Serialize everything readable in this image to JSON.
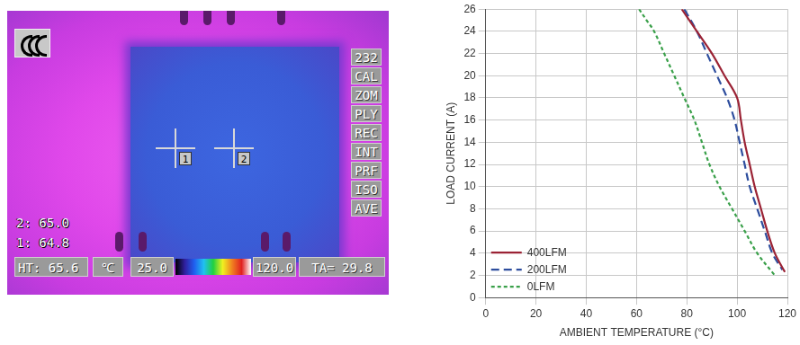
{
  "chart_data": {
    "type": "line",
    "x_label": "AMBIENT TEMPERATURE (°C)",
    "y_label": "LOAD CURRENT (A)",
    "xlim": [
      0,
      120
    ],
    "xticks": [
      0,
      20,
      40,
      60,
      80,
      100,
      120
    ],
    "ylim": [
      0,
      26
    ],
    "yticks": [
      0,
      2,
      4,
      6,
      8,
      10,
      12,
      14,
      16,
      18,
      20,
      22,
      24,
      26
    ],
    "grid": true,
    "legend": "lower left",
    "series": [
      {
        "name": "400LFM",
        "color": "#9b2335",
        "line_style": "solid",
        "x": [
          78,
          84,
          90,
          95,
          100,
          101.5,
          103,
          105,
          107,
          109.5,
          112,
          115,
          119
        ],
        "values": [
          26,
          24,
          22,
          20,
          18,
          16,
          14,
          12,
          10,
          8,
          6,
          4,
          2.3
        ]
      },
      {
        "name": "200LFM",
        "color": "#2e4e9e",
        "line_style": "dashed",
        "x": [
          79,
          84,
          88,
          92,
          96,
          99,
          101,
          103,
          105,
          108,
          111,
          114,
          118
        ],
        "values": [
          26,
          24,
          22,
          20,
          18,
          16,
          14,
          12,
          10,
          8,
          6,
          4,
          2.5
        ]
      },
      {
        "name": "0LFM",
        "color": "#3aa04a",
        "line_style": "dotted",
        "x": [
          61,
          64,
          67,
          71,
          75,
          79,
          83,
          86,
          89,
          93,
          98,
          103,
          108,
          115
        ],
        "values": [
          26,
          25,
          24,
          22,
          20,
          18,
          16,
          14,
          12,
          10,
          8,
          6,
          4,
          2
        ]
      }
    ]
  },
  "thermal_image": {
    "menu": [
      "232",
      "CAL",
      "ZOM",
      "PLY",
      "REC",
      "INT",
      "PRF",
      "ISO",
      "AVE"
    ],
    "markers": [
      "1",
      "2"
    ],
    "readings": [
      "2: 65.0",
      "1: 64.8"
    ],
    "status_bar": {
      "hot_spot": "HT: 65.6",
      "unit": "℃",
      "scale_min": "25.0",
      "scale_max": "120.0",
      "ambient": "TA= 29.8"
    }
  }
}
